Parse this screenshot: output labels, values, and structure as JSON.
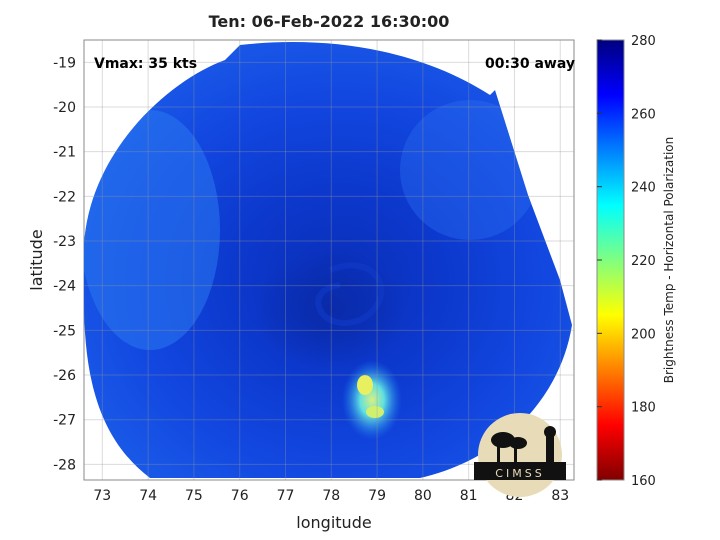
{
  "title": "Ten: 06-Feb-2022 16:30:00",
  "overlay": {
    "vmax": "Vmax: 35 kts",
    "away": "00:30 away"
  },
  "axes": {
    "xlabel": "longitude",
    "ylabel": "latitude",
    "xlim": [
      72.6,
      83.3
    ],
    "ylim": [
      -28.35,
      -18.5
    ],
    "xticks": [
      "73",
      "74",
      "75",
      "76",
      "77",
      "78",
      "79",
      "80",
      "81",
      "82",
      "83"
    ],
    "yticks": [
      "-19",
      "-20",
      "-21",
      "-22",
      "-23",
      "-24",
      "-25",
      "-26",
      "-27",
      "-28"
    ],
    "grid": true
  },
  "colorbar": {
    "label": "Brightness Temp - Horizontal Polarization",
    "ticks": [
      "280",
      "260",
      "240",
      "220",
      "200",
      "180",
      "160"
    ],
    "range": [
      160,
      280
    ],
    "colormap": "jet"
  },
  "logo": {
    "text": "CIMSS"
  },
  "chart_data": {
    "type": "heatmap",
    "title": "Ten: 06-Feb-2022 16:30:00",
    "xlabel": "longitude",
    "ylabel": "latitude",
    "storm_center": {
      "lon": 78.2,
      "lat": -23.6
    },
    "vmax_kts": 35,
    "bright_area": {
      "lon": 78.7,
      "lat": -26.5,
      "min_temp": 215
    },
    "background_temp": 265
  }
}
